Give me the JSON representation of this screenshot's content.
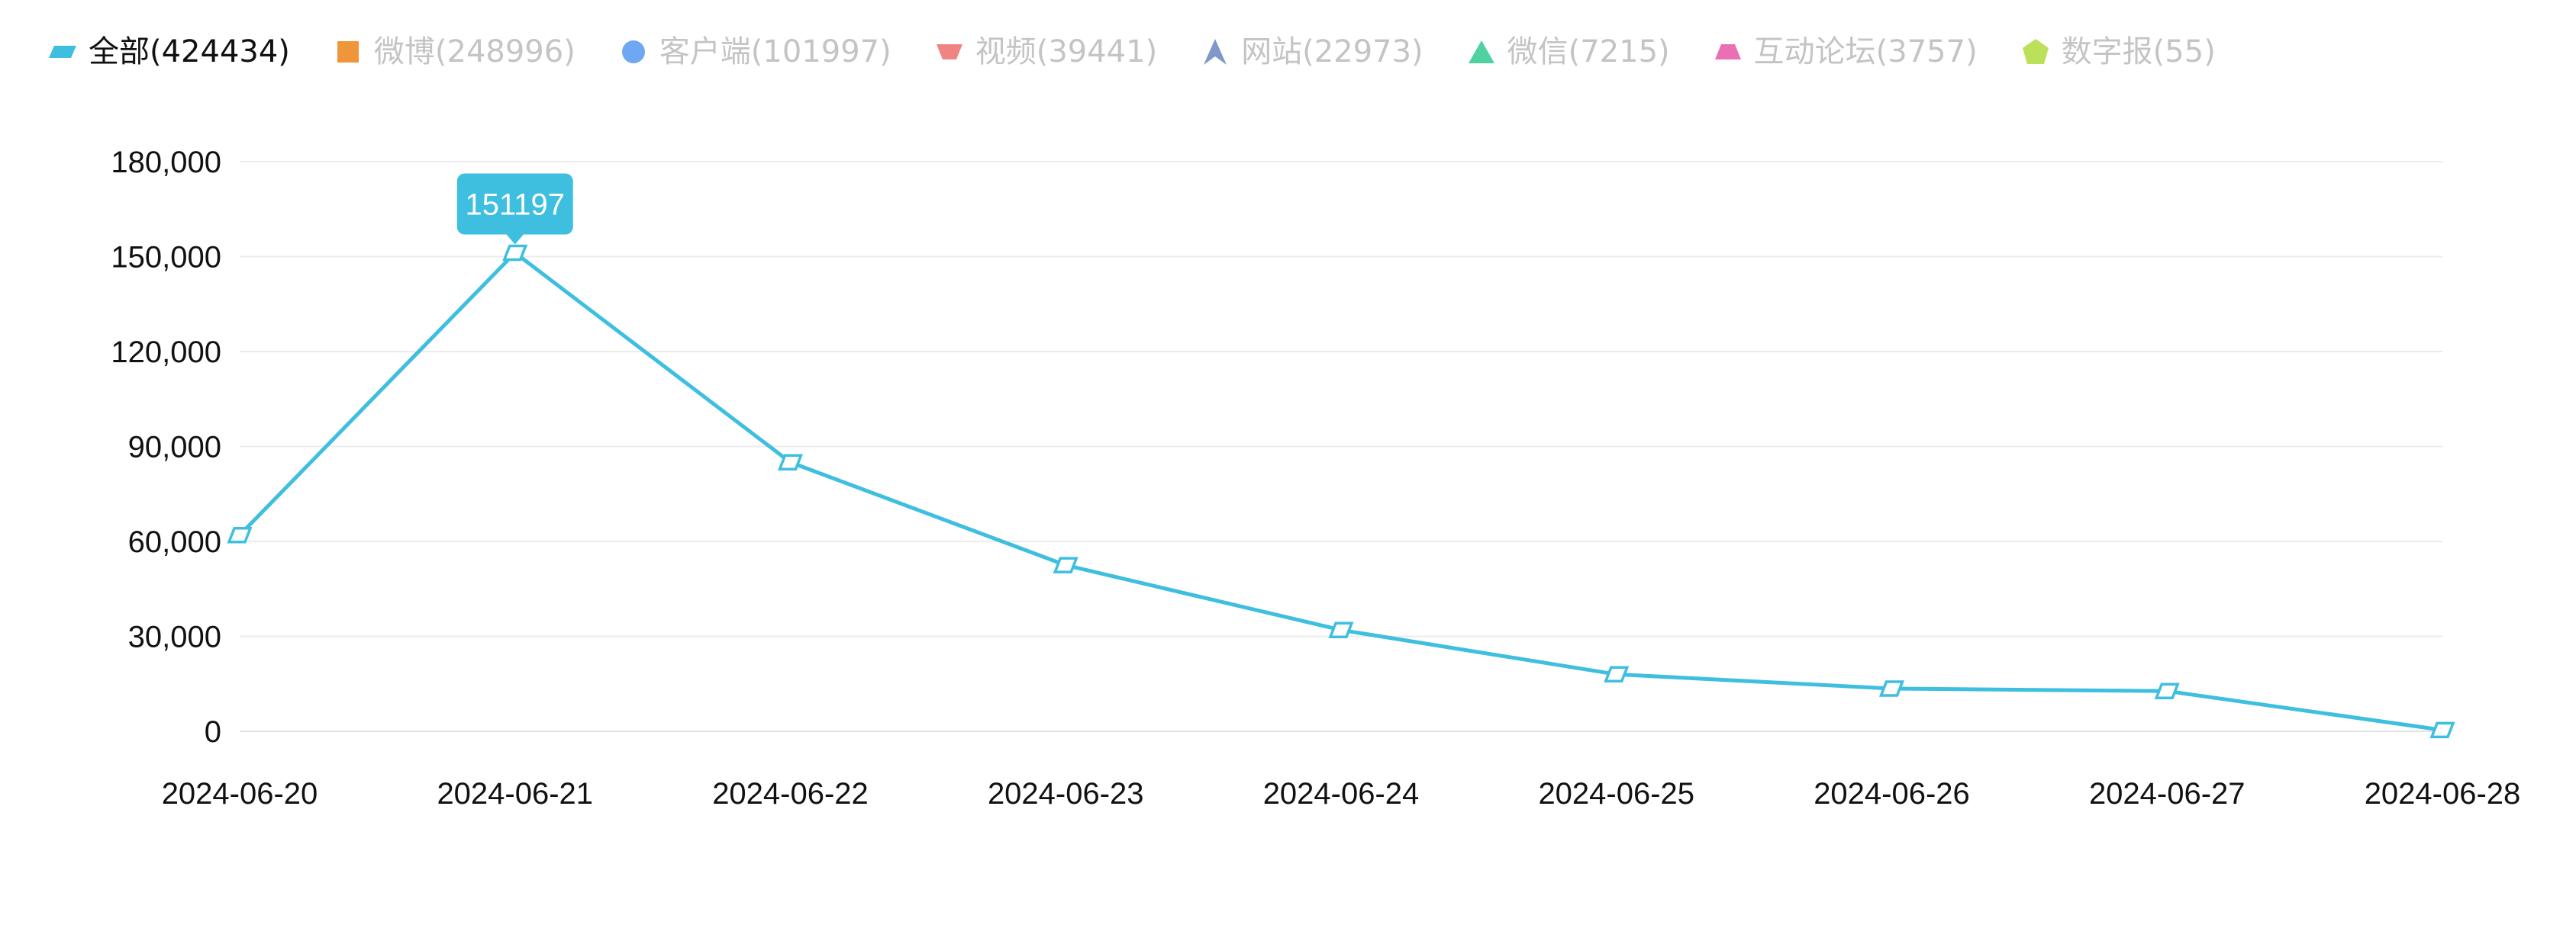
{
  "legend": {
    "items": [
      {
        "label": "全部(424434)",
        "shape": "parallelogram",
        "color": "#3fbfdf",
        "active": true
      },
      {
        "label": "微博(248996)",
        "shape": "square",
        "color": "#f0963a",
        "active": false
      },
      {
        "label": "客户端(101997)",
        "shape": "circle",
        "color": "#6fa8f2",
        "active": false
      },
      {
        "label": "视频(39441)",
        "shape": "inverted-trapezoid",
        "color": "#ef8583",
        "active": false
      },
      {
        "label": "网站(22973)",
        "shape": "arrow",
        "color": "#7f97c9",
        "active": false
      },
      {
        "label": "微信(7215)",
        "shape": "triangle",
        "color": "#4fd2a0",
        "active": false
      },
      {
        "label": "互动论坛(3757)",
        "shape": "trapezoid",
        "color": "#ea6fb4",
        "active": false
      },
      {
        "label": "数字报(55)",
        "shape": "pentagon",
        "color": "#bde05a",
        "active": false
      }
    ]
  },
  "chart_data": {
    "type": "line",
    "title": "",
    "xlabel": "",
    "ylabel": "",
    "x": [
      "2024-06-20",
      "2024-06-21",
      "2024-06-22",
      "2024-06-23",
      "2024-06-24",
      "2024-06-25",
      "2024-06-26",
      "2024-06-27",
      "2024-06-28"
    ],
    "series": [
      {
        "name": "全部(424434)",
        "color": "#3fbfdf",
        "values": [
          62000,
          151197,
          85000,
          52500,
          32000,
          18000,
          13500,
          12700,
          400
        ]
      }
    ],
    "ylim": [
      0,
      180000
    ],
    "yticks": [
      0,
      30000,
      60000,
      90000,
      120000,
      150000,
      180000
    ],
    "ytick_labels": [
      "0",
      "30,000",
      "60,000",
      "90,000",
      "120,000",
      "150,000",
      "180,000"
    ],
    "grid": true,
    "legend_position": "top-left",
    "tooltip": {
      "series_index": 0,
      "point_index": 1,
      "label": "151197"
    }
  }
}
